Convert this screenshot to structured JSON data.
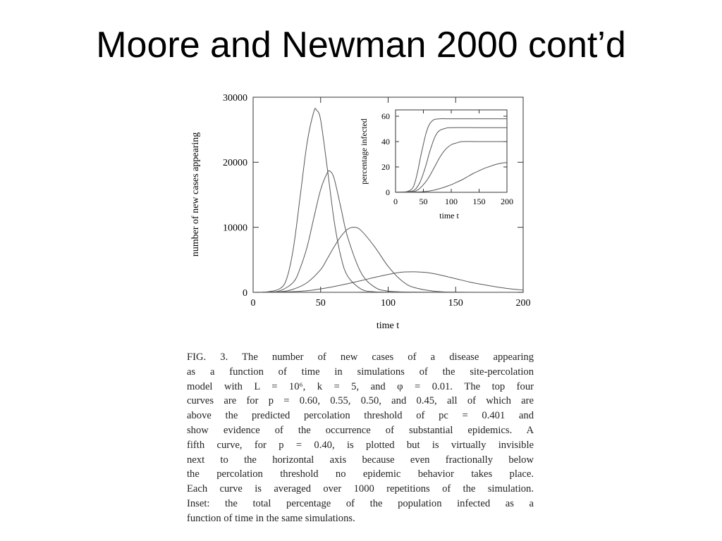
{
  "slide": {
    "title": "Moore and Newman 2000 cont’d"
  },
  "chart_data": [
    {
      "type": "line",
      "xlabel": "time t",
      "ylabel": "number of new cases appearing",
      "xlim": [
        0,
        200
      ],
      "ylim": [
        0,
        30000
      ],
      "xticks": [
        0,
        50,
        100,
        150,
        200
      ],
      "yticks": [
        0,
        10000,
        20000,
        30000
      ],
      "xtick_labels": [
        "0",
        "50",
        "100",
        "150",
        "200"
      ],
      "ytick_labels": [
        "0",
        "10000",
        "20000",
        "30000"
      ],
      "grid": false,
      "line_color": "#555555",
      "series": [
        {
          "x": [
            0,
            10,
            20,
            25,
            30,
            35,
            40,
            45,
            47,
            50,
            55,
            60,
            65,
            70,
            80,
            90,
            100,
            120,
            150,
            200
          ],
          "y": [
            0,
            60,
            600,
            2200,
            7000,
            15000,
            23000,
            27800,
            28000,
            26500,
            19000,
            11000,
            5500,
            2500,
            500,
            80,
            10,
            0,
            0,
            0
          ]
        },
        {
          "x": [
            0,
            10,
            20,
            30,
            35,
            40,
            45,
            50,
            55,
            57,
            60,
            65,
            70,
            80,
            90,
            100,
            120,
            150,
            200
          ],
          "y": [
            0,
            20,
            250,
            1600,
            3800,
            7000,
            11500,
            15800,
            18400,
            18600,
            17500,
            13000,
            8500,
            3000,
            800,
            200,
            20,
            0,
            0
          ]
        },
        {
          "x": [
            0,
            20,
            30,
            40,
            50,
            55,
            60,
            65,
            70,
            75,
            80,
            90,
            100,
            110,
            120,
            140,
            170,
            200
          ],
          "y": [
            0,
            100,
            500,
            1500,
            3500,
            5200,
            7000,
            8600,
            9700,
            10000,
            9500,
            7000,
            4000,
            1800,
            700,
            80,
            5,
            0
          ]
        },
        {
          "x": [
            0,
            20,
            40,
            60,
            80,
            90,
            100,
            110,
            120,
            130,
            140,
            150,
            160,
            170,
            180,
            190,
            200
          ],
          "y": [
            0,
            50,
            250,
            900,
            1800,
            2300,
            2750,
            3100,
            3150,
            3000,
            2600,
            2100,
            1600,
            1200,
            850,
            550,
            350
          ]
        },
        {
          "x": [
            0,
            50,
            100,
            150,
            200
          ],
          "y": [
            0,
            15,
            25,
            20,
            15
          ]
        }
      ]
    },
    {
      "type": "line",
      "inset": true,
      "xlabel": "time t",
      "ylabel": "percentage infected",
      "xlim": [
        0,
        200
      ],
      "ylim": [
        0,
        65
      ],
      "xticks": [
        0,
        50,
        100,
        150,
        200
      ],
      "yticks": [
        0,
        20,
        40,
        60
      ],
      "xtick_labels": [
        "0",
        "50",
        "100",
        "150",
        "200"
      ],
      "ytick_labels": [
        "0",
        "20",
        "40",
        "60"
      ],
      "grid": false,
      "line_color": "#555555",
      "series": [
        {
          "x": [
            0,
            20,
            30,
            35,
            40,
            45,
            50,
            55,
            60,
            65,
            70,
            80,
            90,
            100,
            150,
            200
          ],
          "y": [
            0,
            0.5,
            3,
            8,
            17,
            28,
            38,
            47,
            53,
            56,
            57.5,
            58,
            58,
            58,
            58,
            58
          ]
        },
        {
          "x": [
            0,
            30,
            40,
            45,
            50,
            55,
            60,
            65,
            70,
            75,
            80,
            90,
            100,
            150,
            200
          ],
          "y": [
            0,
            1,
            5,
            9,
            15,
            22,
            30,
            37,
            43,
            47,
            49,
            50.5,
            51,
            51,
            51
          ]
        },
        {
          "x": [
            0,
            30,
            40,
            50,
            60,
            70,
            80,
            90,
            100,
            110,
            120,
            150,
            200
          ],
          "y": [
            0,
            0.5,
            2,
            6,
            12,
            20,
            28,
            34,
            37.5,
            39,
            40,
            40,
            40
          ]
        },
        {
          "x": [
            0,
            40,
            60,
            80,
            100,
            110,
            120,
            130,
            140,
            150,
            160,
            170,
            180,
            190,
            200
          ],
          "y": [
            0,
            0.3,
            1,
            3,
            6,
            8,
            10,
            12.5,
            15,
            17,
            19,
            20.5,
            22,
            23,
            23.5
          ]
        }
      ]
    }
  ],
  "caption": {
    "lines": [
      "FIG. 3. The number of new cases of a disease appearing",
      "as a function of time in simulations of the site-percolation",
      "model with L = 10⁶, k = 5, and φ = 0.01. The top four",
      "curves are for p = 0.60, 0.55, 0.50, and 0.45, all of which are",
      "above the predicted percolation threshold of pc = 0.401 and",
      "show evidence of the occurrence of substantial epidemics. A",
      "fifth curve, for p = 0.40, is plotted but is virtually invisible",
      "next to the horizontal axis because even fractionally below",
      "the percolation threshold no epidemic behavior takes place.",
      "Each curve is averaged over 1000 repetitions of the simulation.",
      "Inset: the total percentage of the population infected as a",
      "function of time in the same simulations."
    ]
  }
}
